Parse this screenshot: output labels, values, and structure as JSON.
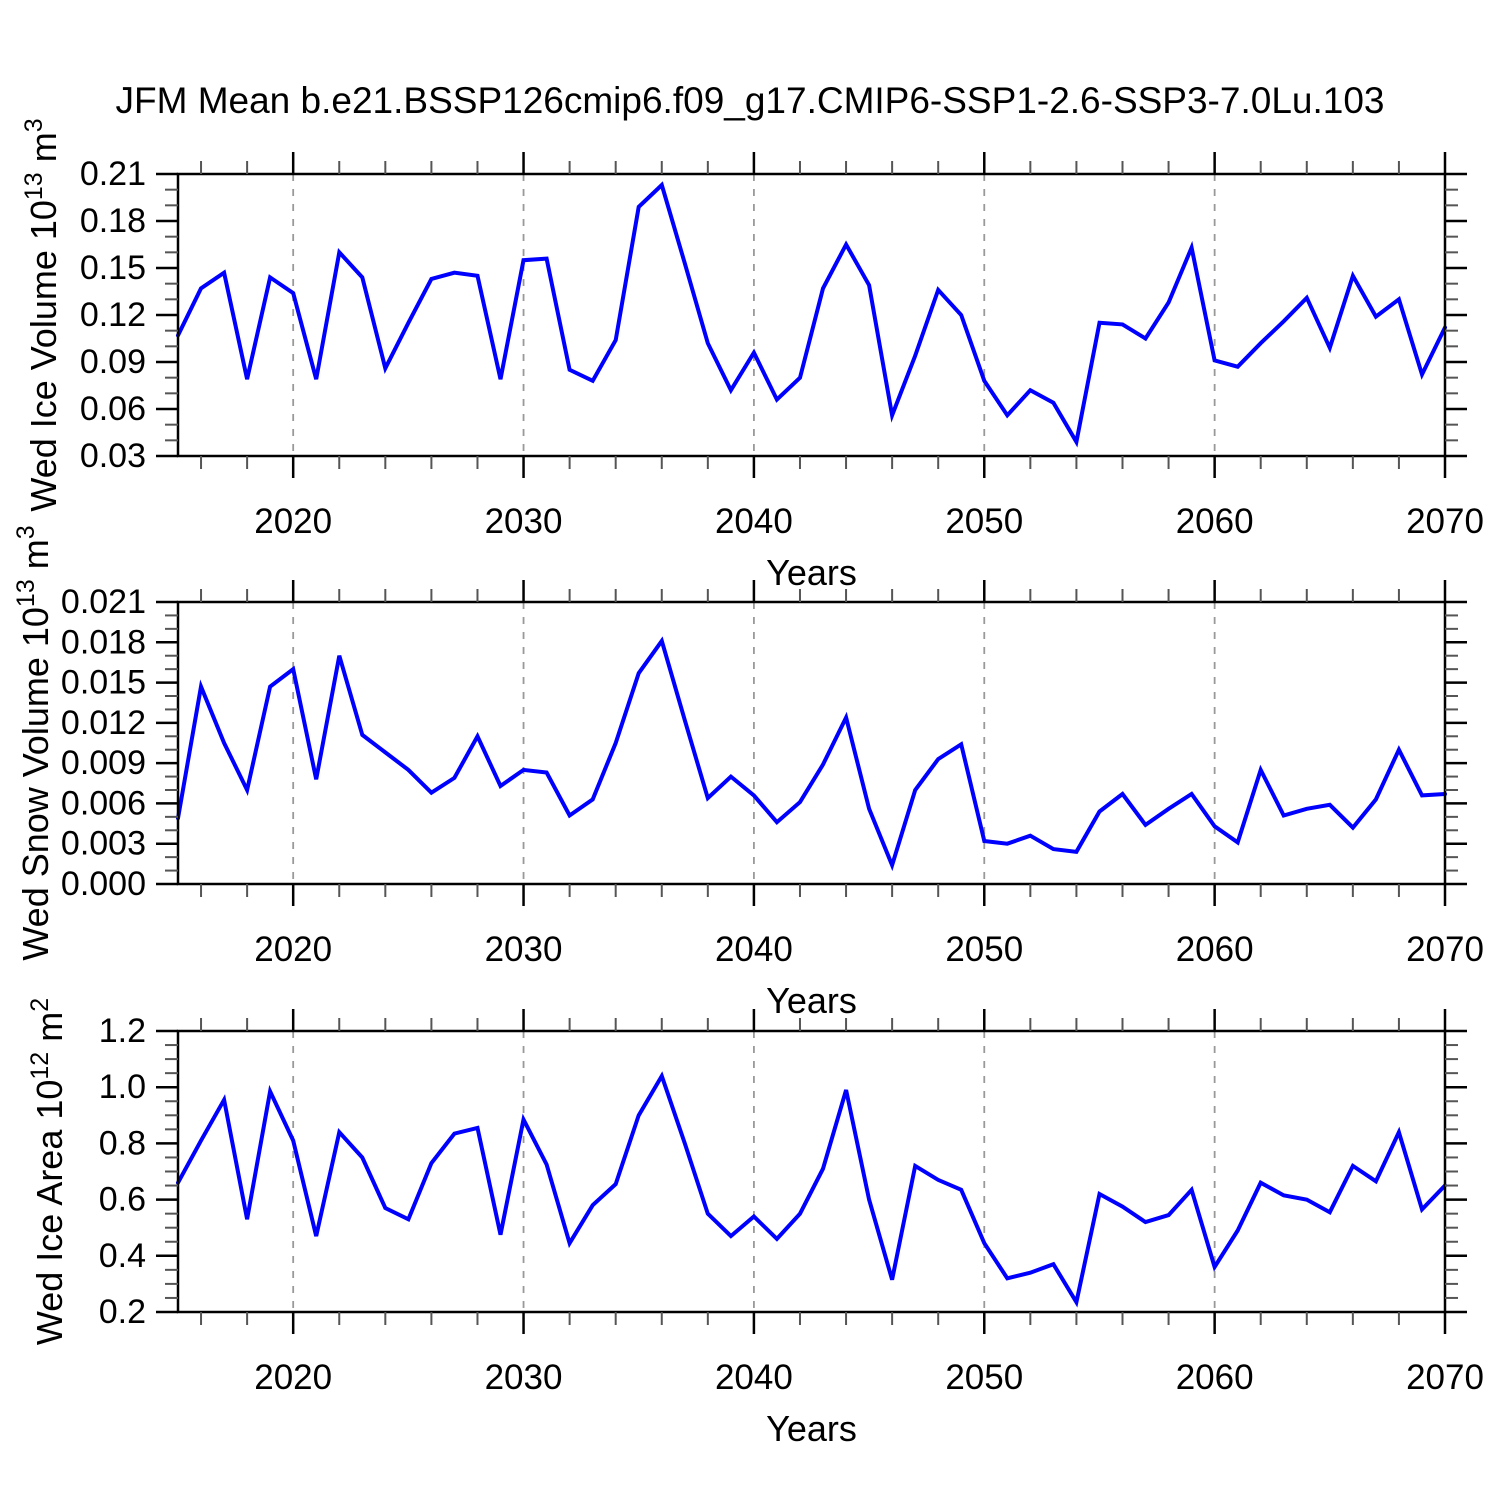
{
  "title": "JFM Mean b.e21.BSSP126cmip6.f09_g17.CMIP6-SSP1-2.6-SSP3-7.0Lu.103",
  "xlabel": "Years",
  "colors": {
    "line": "#0000FF",
    "grid": "#999999",
    "axis": "#000000",
    "minor_tick": "#555555",
    "background": "#FFFFFF"
  },
  "x_axis": {
    "start": 2015,
    "end": 2070,
    "major_ticks": [
      2020,
      2030,
      2040,
      2050,
      2060,
      2070
    ],
    "major_tick_labels": [
      "2020",
      "2030",
      "2040",
      "2050",
      "2060",
      "2070"
    ],
    "minor_step": 2,
    "gridlines": [
      2020,
      2030,
      2040,
      2050,
      2060
    ]
  },
  "years": [
    2015,
    2016,
    2017,
    2018,
    2019,
    2020,
    2021,
    2022,
    2023,
    2024,
    2025,
    2026,
    2027,
    2028,
    2029,
    2030,
    2031,
    2032,
    2033,
    2034,
    2035,
    2036,
    2037,
    2038,
    2039,
    2040,
    2041,
    2042,
    2043,
    2044,
    2045,
    2046,
    2047,
    2048,
    2049,
    2050,
    2051,
    2052,
    2053,
    2054,
    2055,
    2056,
    2057,
    2058,
    2059,
    2060,
    2061,
    2062,
    2063,
    2064,
    2065,
    2066,
    2067,
    2068,
    2069,
    2070
  ],
  "chart_data": [
    {
      "type": "line",
      "name": "wed-ice-volume",
      "ylabel": "Wed Ice Volume 10^13 m^3",
      "ylabel_parts": [
        {
          "t": "Wed Ice Volume 10"
        },
        {
          "t": "13",
          "sup": true
        },
        {
          "t": " m"
        },
        {
          "t": "3",
          "sup": true
        }
      ],
      "ylim": [
        0.03,
        0.21
      ],
      "yticks": [
        {
          "v": 0.21,
          "label": "0.21"
        },
        {
          "v": 0.18,
          "label": "0.18"
        },
        {
          "v": 0.15,
          "label": "0.15"
        },
        {
          "v": 0.12,
          "label": "0.12"
        },
        {
          "v": 0.09,
          "label": "0.09"
        },
        {
          "v": 0.06,
          "label": "0.06"
        },
        {
          "v": 0.03,
          "label": "0.03"
        }
      ],
      "yminor_step": 0.01,
      "values": [
        0.107,
        0.137,
        0.147,
        0.079,
        0.144,
        0.134,
        0.079,
        0.16,
        0.144,
        0.086,
        0.115,
        0.143,
        0.147,
        0.145,
        0.079,
        0.155,
        0.156,
        0.085,
        0.078,
        0.104,
        0.189,
        0.203,
        0.153,
        0.102,
        0.072,
        0.096,
        0.066,
        0.08,
        0.137,
        0.165,
        0.139,
        0.056,
        0.094,
        0.136,
        0.12,
        0.078,
        0.056,
        0.072,
        0.064,
        0.039,
        0.115,
        0.114,
        0.105,
        0.128,
        0.163,
        0.091,
        0.087,
        0.102,
        0.116,
        0.131,
        0.099,
        0.145,
        0.119,
        0.13,
        0.082,
        0.112
      ]
    },
    {
      "type": "line",
      "name": "wed-snow-volume",
      "ylabel": "Wed Snow Volume 10^13 m^3",
      "ylabel_parts": [
        {
          "t": "Wed Snow Volume 10"
        },
        {
          "t": "13",
          "sup": true
        },
        {
          "t": " m"
        },
        {
          "t": "3",
          "sup": true
        }
      ],
      "ylim": [
        0.0,
        0.021
      ],
      "yticks": [
        {
          "v": 0.021,
          "label": "0.021"
        },
        {
          "v": 0.018,
          "label": "0.018"
        },
        {
          "v": 0.015,
          "label": "0.015"
        },
        {
          "v": 0.012,
          "label": "0.012"
        },
        {
          "v": 0.009,
          "label": "0.009"
        },
        {
          "v": 0.006,
          "label": "0.006"
        },
        {
          "v": 0.003,
          "label": "0.003"
        },
        {
          "v": 0.0,
          "label": "0.000"
        }
      ],
      "yminor_step": 0.001,
      "values": [
        0.0049,
        0.0147,
        0.0105,
        0.007,
        0.0147,
        0.016,
        0.0078,
        0.017,
        0.0111,
        0.0098,
        0.0085,
        0.0068,
        0.0079,
        0.011,
        0.0073,
        0.0085,
        0.0083,
        0.0051,
        0.0063,
        0.0105,
        0.0157,
        0.0181,
        0.0122,
        0.0064,
        0.008,
        0.0066,
        0.0046,
        0.0061,
        0.0089,
        0.0124,
        0.0056,
        0.0014,
        0.007,
        0.0093,
        0.0104,
        0.0032,
        0.003,
        0.0036,
        0.0026,
        0.0024,
        0.0054,
        0.0067,
        0.0044,
        0.0056,
        0.0067,
        0.0043,
        0.0031,
        0.0085,
        0.0051,
        0.0056,
        0.0059,
        0.0042,
        0.0063,
        0.01,
        0.0066,
        0.0067
      ]
    },
    {
      "type": "line",
      "name": "wed-ice-area",
      "ylabel": "Wed Ice Area 10^12 m^2",
      "ylabel_parts": [
        {
          "t": "Wed Ice Area 10"
        },
        {
          "t": "12",
          "sup": true
        },
        {
          "t": " m"
        },
        {
          "t": "2",
          "sup": true
        }
      ],
      "ylim": [
        0.2,
        1.2
      ],
      "yticks": [
        {
          "v": 1.2,
          "label": "1.2"
        },
        {
          "v": 1.0,
          "label": "1.0"
        },
        {
          "v": 0.8,
          "label": "0.8"
        },
        {
          "v": 0.6,
          "label": "0.6"
        },
        {
          "v": 0.4,
          "label": "0.4"
        },
        {
          "v": 0.2,
          "label": "0.2"
        }
      ],
      "yminor_step": 0.05,
      "values": [
        0.66,
        0.81,
        0.955,
        0.53,
        0.985,
        0.81,
        0.47,
        0.84,
        0.75,
        0.57,
        0.53,
        0.73,
        0.835,
        0.855,
        0.475,
        0.885,
        0.725,
        0.445,
        0.58,
        0.655,
        0.9,
        1.04,
        0.8,
        0.55,
        0.47,
        0.54,
        0.46,
        0.55,
        0.71,
        0.99,
        0.6,
        0.315,
        0.72,
        0.67,
        0.635,
        0.445,
        0.32,
        0.34,
        0.37,
        0.235,
        0.62,
        0.575,
        0.52,
        0.545,
        0.635,
        0.36,
        0.49,
        0.66,
        0.615,
        0.6,
        0.555,
        0.72,
        0.665,
        0.84,
        0.565,
        0.65
      ]
    }
  ]
}
